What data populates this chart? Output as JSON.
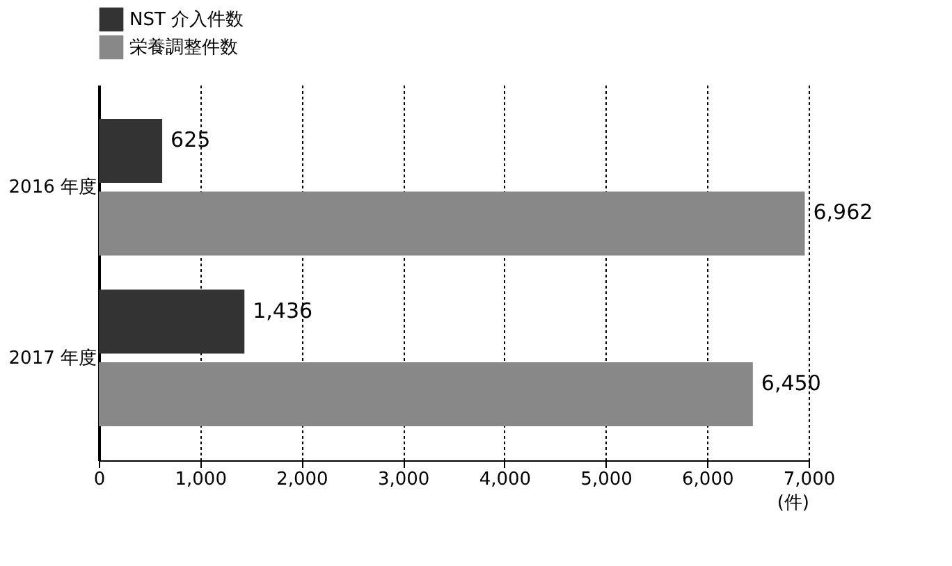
{
  "chart_data": {
    "type": "bar",
    "orientation": "horizontal",
    "categories": [
      "2016 年度",
      "2017 年度"
    ],
    "series": [
      {
        "name": "NST 介入件数",
        "color": "#333333",
        "values": [
          625,
          1436
        ],
        "value_labels": [
          "625",
          "1,436"
        ]
      },
      {
        "name": "栄養調整件数",
        "color": "#888888",
        "values": [
          6962,
          6450
        ],
        "value_labels": [
          "6,962",
          "6,450"
        ]
      }
    ],
    "xlabel": "(件)",
    "xlim": [
      0,
      7000
    ],
    "xticks": [
      0,
      {
        "value": 1000,
        "label": "1,000"
      },
      {
        "value": 2000,
        "label": "2,000"
      },
      {
        "value": 3000,
        "label": "3,000"
      },
      {
        "value": 4000,
        "label": "4,000"
      },
      {
        "value": 5000,
        "label": "5,000"
      },
      {
        "value": 6000,
        "label": "6,000"
      },
      {
        "value": 7000,
        "label": "7,000"
      }
    ],
    "grid": "x",
    "legend": "top"
  }
}
